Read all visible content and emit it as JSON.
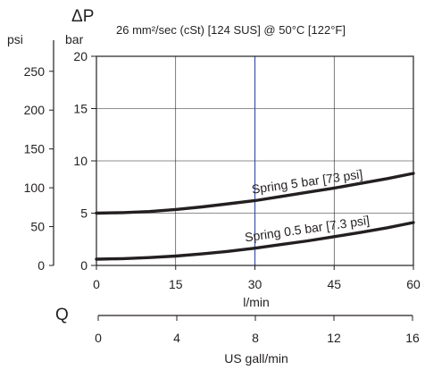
{
  "chart_data": {
    "type": "line",
    "title": "26 mm²/sec (cSt) [124 SUS] @ 50°C [122°F]",
    "delta_symbol": "ΔP",
    "y_unit_bar": "bar",
    "y_unit_psi": "psi",
    "xlabel": "l/min",
    "x2label": "US gall/min",
    "q_label": "Q",
    "x_ticks": [
      "0",
      "15",
      "30",
      "45",
      "60"
    ],
    "x2_ticks": [
      "0",
      "4",
      "8",
      "12",
      "16"
    ],
    "y_ticks_bar": [
      "0",
      "5",
      "10",
      "15",
      "20"
    ],
    "y_ticks_psi": [
      "0",
      "50",
      "100",
      "150",
      "200",
      "250"
    ],
    "xlim": [
      0,
      60
    ],
    "ylim": [
      0,
      20
    ],
    "x2lim": [
      0,
      16
    ],
    "psi_lim": [
      0,
      290
    ],
    "grid": true,
    "marker_x": 30,
    "series": [
      {
        "name": "Spring 5 bar [73 psi]",
        "x": [
          0,
          5,
          10,
          15,
          20,
          25,
          30,
          35,
          40,
          45,
          50,
          55,
          60
        ],
        "y": [
          5.0,
          5.05,
          5.15,
          5.35,
          5.6,
          5.9,
          6.2,
          6.6,
          7.0,
          7.4,
          7.85,
          8.3,
          8.8
        ]
      },
      {
        "name": "Spring 0.5 bar [7.3 psi]",
        "x": [
          0,
          5,
          10,
          15,
          20,
          25,
          30,
          35,
          40,
          45,
          50,
          55,
          60
        ],
        "y": [
          0.6,
          0.65,
          0.75,
          0.9,
          1.1,
          1.35,
          1.65,
          2.0,
          2.35,
          2.75,
          3.15,
          3.6,
          4.1
        ]
      }
    ],
    "colors": {
      "series": "#231f20",
      "grid": "#231f20",
      "marker": "#3b4fa8"
    }
  }
}
